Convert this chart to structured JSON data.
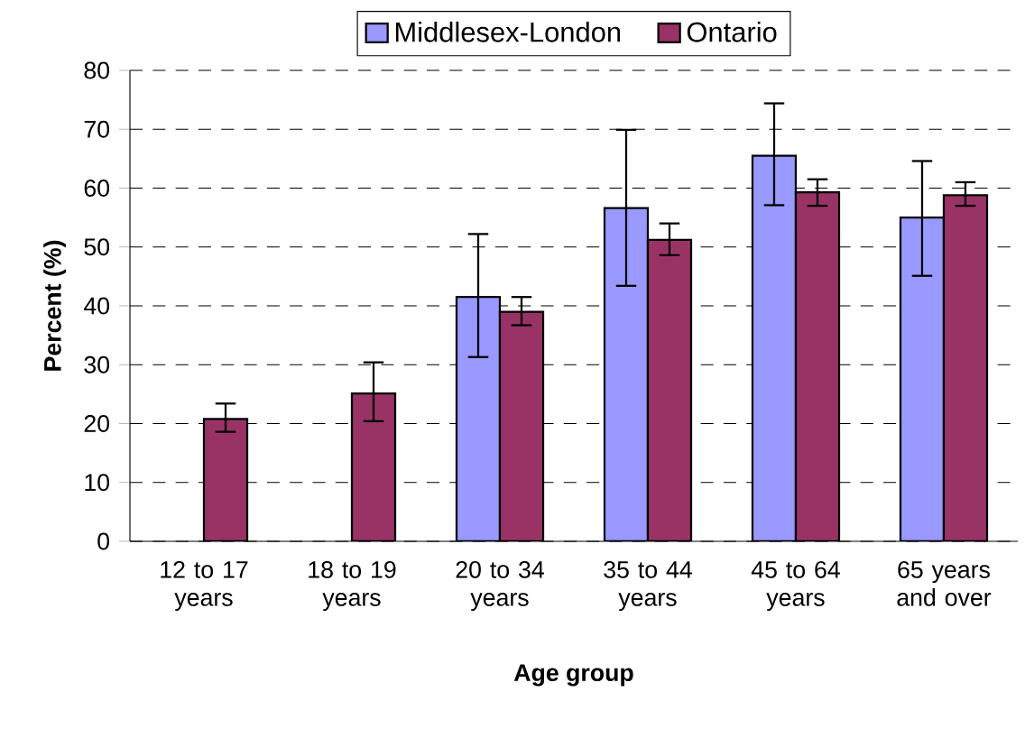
{
  "chart_data": {
    "type": "bar",
    "xlabel": "Age group",
    "ylabel": "Percent (%)",
    "categories": [
      "12 to 17 years",
      "18 to 19 years",
      "20 to 34 years",
      "35 to 44 years",
      "45 to 64 years",
      "65 years and over"
    ],
    "series": [
      {
        "name": "Middlesex-London",
        "color": "#9999ff",
        "values": [
          null,
          null,
          41.5,
          56.6,
          65.5,
          55.0
        ],
        "errors": [
          null,
          null,
          [
            31.3,
            52.2
          ],
          [
            43.4,
            69.9
          ],
          [
            57.1,
            74.4
          ],
          [
            45.1,
            64.6
          ]
        ]
      },
      {
        "name": "Ontario",
        "color": "#993366",
        "values": [
          20.8,
          25.1,
          39.0,
          51.2,
          59.3,
          58.8
        ],
        "errors": [
          [
            18.6,
            23.4
          ],
          [
            20.4,
            30.4
          ],
          [
            36.7,
            41.5
          ],
          [
            48.6,
            54.0
          ],
          [
            57.0,
            61.5
          ],
          [
            57.0,
            61.0
          ]
        ]
      }
    ],
    "ylim": [
      0,
      80
    ],
    "yticks": [
      0,
      10,
      20,
      30,
      40,
      50,
      60,
      70,
      80
    ],
    "grid": "y",
    "legend": "top"
  }
}
